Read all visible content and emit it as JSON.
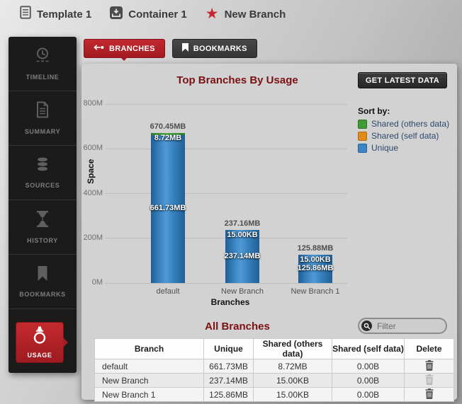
{
  "breadcrumb": {
    "items": [
      {
        "label": "Template 1",
        "icon": "template-icon"
      },
      {
        "label": "Container 1",
        "icon": "container-icon"
      },
      {
        "label": "New Branch",
        "icon": "branch-star-icon"
      }
    ]
  },
  "sidebar": {
    "items": [
      {
        "label": "TIMELINE",
        "icon": "clock-icon"
      },
      {
        "label": "SUMMARY",
        "icon": "document-icon"
      },
      {
        "label": "SOURCES",
        "icon": "database-icon"
      },
      {
        "label": "HISTORY",
        "icon": "hourglass-icon"
      },
      {
        "label": "BOOKMARKS",
        "icon": "bookmark-icon"
      },
      {
        "label": "USAGE",
        "icon": "usage-scale-icon"
      }
    ]
  },
  "tabs": {
    "branches_label": "BRANCHES",
    "bookmarks_label": "BOOKMARKS"
  },
  "chart_header": {
    "title": "Top Branches By Usage",
    "button_label": "GET LATEST DATA"
  },
  "chart_data": {
    "type": "bar",
    "stacked": true,
    "title": "Top Branches By Usage",
    "xlabel": "Branches",
    "ylabel": "Space",
    "ylim": [
      0,
      800
    ],
    "grid": true,
    "legend_position": "right",
    "legend_title": "Sort by:",
    "yticks": [
      {
        "value": 0,
        "label": "0M"
      },
      {
        "value": 200,
        "label": "200M"
      },
      {
        "value": 400,
        "label": "400M"
      },
      {
        "value": 600,
        "label": "600M"
      },
      {
        "value": 800,
        "label": "800M"
      }
    ],
    "categories": [
      "default",
      "New Branch",
      "New Branch 1"
    ],
    "series": [
      {
        "name": "Shared (others data)",
        "color": "#3f9b37",
        "border": "#2e7527",
        "values_mb": [
          8.72,
          0.0146,
          0.0146
        ],
        "labels": [
          "8.72MB",
          "15.00KB",
          "15.00KB"
        ]
      },
      {
        "name": "Shared (self data)",
        "color": "#e08a1d",
        "border": "#b06a10",
        "values_mb": [
          0,
          0,
          0
        ],
        "labels": [
          "0.00B",
          "0.00B",
          "0.00B"
        ]
      },
      {
        "name": "Unique",
        "color": "#3d85c6",
        "border": "#2a6396",
        "values_mb": [
          661.73,
          237.14,
          125.86
        ],
        "labels": [
          "661.73MB",
          "237.14MB",
          "125.86MB"
        ]
      }
    ],
    "totals": {
      "values_mb": [
        670.45,
        237.16,
        125.88
      ],
      "labels": [
        "670.45MB",
        "237.16MB",
        "125.88MB"
      ]
    }
  },
  "all_branches": {
    "title": "All Branches",
    "filter_placeholder": "Filter",
    "table": {
      "headers": [
        "Branch",
        "Unique",
        "Shared (others data)",
        "Shared (self data)",
        "Delete"
      ],
      "rows": [
        {
          "branch": "default",
          "unique": "661.73MB",
          "shared_others": "8.72MB",
          "shared_self": "0.00B",
          "delete_enabled": true
        },
        {
          "branch": "New Branch",
          "unique": "237.14MB",
          "shared_others": "15.00KB",
          "shared_self": "0.00B",
          "delete_enabled": false
        },
        {
          "branch": "New Branch 1",
          "unique": "125.86MB",
          "shared_others": "15.00KB",
          "shared_self": "0.00B",
          "delete_enabled": true
        }
      ]
    }
  }
}
